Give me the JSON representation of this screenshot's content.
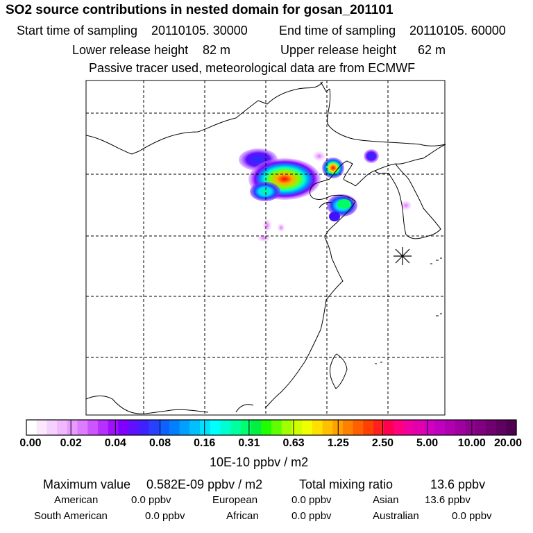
{
  "title": "SO2 source contributions in nested domain for gosan_201101",
  "header": {
    "start_label": "Start time of sampling",
    "start_value": "20110105. 30000",
    "end_label": "End time of sampling",
    "end_value": "20110105. 60000",
    "lower_label": "Lower release height",
    "lower_value": "82 m",
    "upper_label": "Upper release height",
    "upper_value": "62 m",
    "note": "Passive tracer used, meteorological data are from ECMWF"
  },
  "chart_data": {
    "type": "heatmap",
    "title": "SO2 source contributions in nested domain for gosan_201101",
    "colorbar": {
      "ticks": [
        "0.00",
        "0.02",
        "0.04",
        "0.08",
        "0.16",
        "0.31",
        "0.63",
        "1.25",
        "2.50",
        "5.00",
        "10.00",
        "20.00"
      ],
      "unit": "10E-10 ppbv / m2",
      "colors": [
        "#ffffff",
        "#fbe8ff",
        "#f6d0ff",
        "#f0b8ff",
        "#e89aff",
        "#dc7cff",
        "#cc55ff",
        "#b830ff",
        "#a010ff",
        "#8000ff",
        "#6010ff",
        "#4020ff",
        "#2840ff",
        "#1060ff",
        "#0080ff",
        "#00a0ff",
        "#00c0ff",
        "#00e0ff",
        "#00ffff",
        "#00ffd0",
        "#00ffa0",
        "#00ff70",
        "#00f040",
        "#20ff00",
        "#60ff00",
        "#a0ff00",
        "#d0ff00",
        "#f0ff00",
        "#ffe000",
        "#ffc000",
        "#ffa000",
        "#ff8000",
        "#ff6000",
        "#ff4000",
        "#ff2020",
        "#ff0050",
        "#ff0080",
        "#f000a0",
        "#e000b0",
        "#d000c0",
        "#c000c0",
        "#b000b0",
        "#a000a0",
        "#900090",
        "#800080",
        "#700070",
        "#600060",
        "#500050"
      ]
    },
    "receptor_symbol": "asterisk"
  },
  "footer": {
    "max_label": "Maximum value",
    "max_value": "0.582E-09 ppbv / m2",
    "total_label": "Total mixing ratio",
    "total_value": "13.6 ppbv",
    "regions": [
      {
        "name": "American",
        "value": "0.0 ppbv"
      },
      {
        "name": "European",
        "value": "0.0 ppbv"
      },
      {
        "name": "Asian",
        "value": "13.6 ppbv"
      },
      {
        "name": "South American",
        "value": "0.0 ppbv"
      },
      {
        "name": "African",
        "value": "0.0 ppbv"
      },
      {
        "name": "Australian",
        "value": "0.0 ppbv"
      }
    ]
  }
}
